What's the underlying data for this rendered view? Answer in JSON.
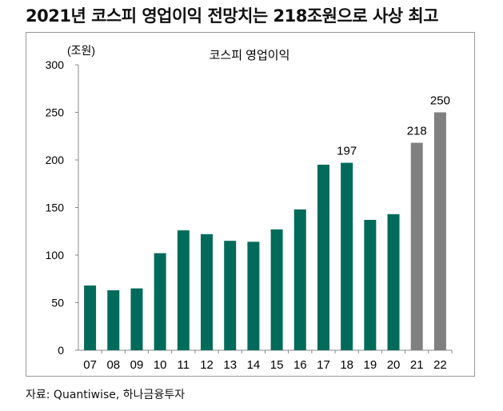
{
  "title": "2021년 코스피 영업이익 전망치는 218조원으로 사상 최고",
  "source": "자료: Quantiwise, 하나금융투자",
  "chart_data": {
    "type": "bar",
    "title": "코스피 영업이익",
    "unit_label": "(조원)",
    "categories": [
      "07",
      "08",
      "09",
      "10",
      "11",
      "12",
      "13",
      "14",
      "15",
      "16",
      "17",
      "18",
      "19",
      "20",
      "21",
      "22"
    ],
    "values": [
      68,
      63,
      65,
      102,
      126,
      122,
      115,
      114,
      127,
      148,
      195,
      197,
      137,
      143,
      218,
      250
    ],
    "data_labels": {
      "18": "197",
      "21": "218",
      "22": "250"
    },
    "forecast_categories": [
      "21",
      "22"
    ],
    "ylim": [
      0,
      300
    ],
    "yticks": [
      0,
      50,
      100,
      150,
      200,
      250,
      300
    ],
    "grid": false,
    "legend": "none",
    "colors": {
      "actual": "#006b5a",
      "forecast": "#808080"
    }
  }
}
